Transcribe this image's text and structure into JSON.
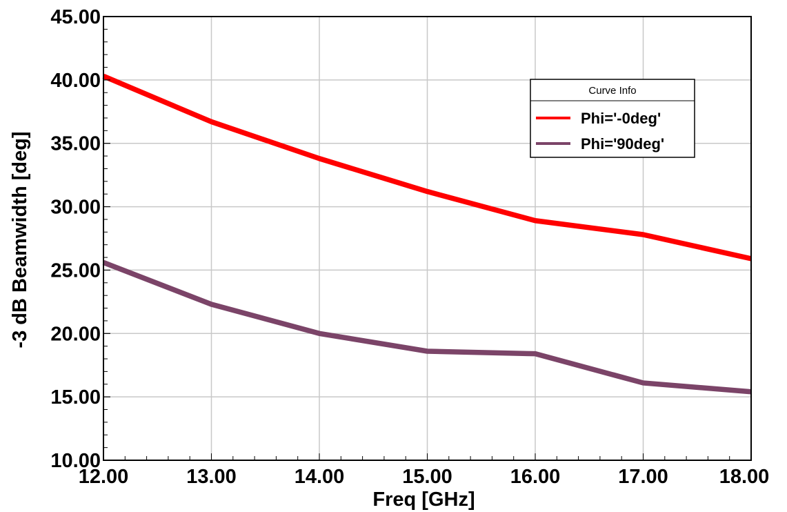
{
  "chart_data": {
    "type": "line",
    "xlabel": "Freq [GHz]",
    "ylabel": "-3 dB Beamwidth [deg]",
    "xlim": [
      12,
      18
    ],
    "ylim": [
      10,
      45
    ],
    "x_ticks": [
      "12.00",
      "13.00",
      "14.00",
      "15.00",
      "16.00",
      "17.00",
      "18.00"
    ],
    "y_ticks": [
      "10.00",
      "15.00",
      "20.00",
      "25.00",
      "30.00",
      "35.00",
      "40.00",
      "45.00"
    ],
    "grid": true,
    "legend": {
      "title": "Curve Info",
      "placement": "top-right"
    },
    "series": [
      {
        "name": "Phi='-0deg'",
        "color": "#ff0000",
        "x": [
          12,
          13,
          14,
          15,
          16,
          17,
          18
        ],
        "y": [
          40.3,
          36.7,
          33.8,
          31.2,
          28.9,
          27.8,
          25.9
        ]
      },
      {
        "name": "Phi='90deg'",
        "color": "#7b4468",
        "x": [
          12,
          13,
          14,
          15,
          16,
          17,
          18
        ],
        "y": [
          25.6,
          22.3,
          20.0,
          18.6,
          18.4,
          16.1,
          15.4
        ]
      }
    ]
  }
}
